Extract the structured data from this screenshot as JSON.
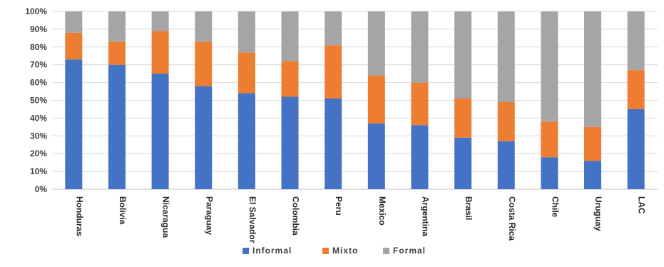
{
  "chart_data": {
    "type": "bar",
    "stacked": true,
    "title": "",
    "xlabel": "",
    "ylabel": "",
    "ylim": [
      0,
      100
    ],
    "y_ticks": [
      "0%",
      "10%",
      "20%",
      "30%",
      "40%",
      "50%",
      "60%",
      "70%",
      "80%",
      "90%",
      "100%"
    ],
    "categories": [
      "Honduras",
      "Bolivia",
      "Nicaragua",
      "Paraguay",
      "El Salvador",
      "Colombia",
      "Peru",
      "Mexico",
      "Argentina",
      "Brasil",
      "Costa Rica",
      "Chile",
      "Uruguay",
      "LAC"
    ],
    "series": [
      {
        "name": "Informal",
        "color": "#4472C4",
        "values": [
          73,
          70,
          65,
          58,
          54,
          52,
          51,
          37,
          36,
          29,
          27,
          18,
          16,
          45
        ]
      },
      {
        "name": "Mixto",
        "color": "#ED7D31",
        "values": [
          15,
          13,
          24,
          25,
          23,
          20,
          30,
          27,
          24,
          22,
          22,
          20,
          19,
          22
        ]
      },
      {
        "name": "Formal",
        "color": "#A5A5A5",
        "values": [
          12,
          17,
          11,
          17,
          23,
          28,
          19,
          36,
          40,
          49,
          51,
          62,
          65,
          33
        ]
      }
    ],
    "grid": true,
    "legend_position": "bottom"
  }
}
